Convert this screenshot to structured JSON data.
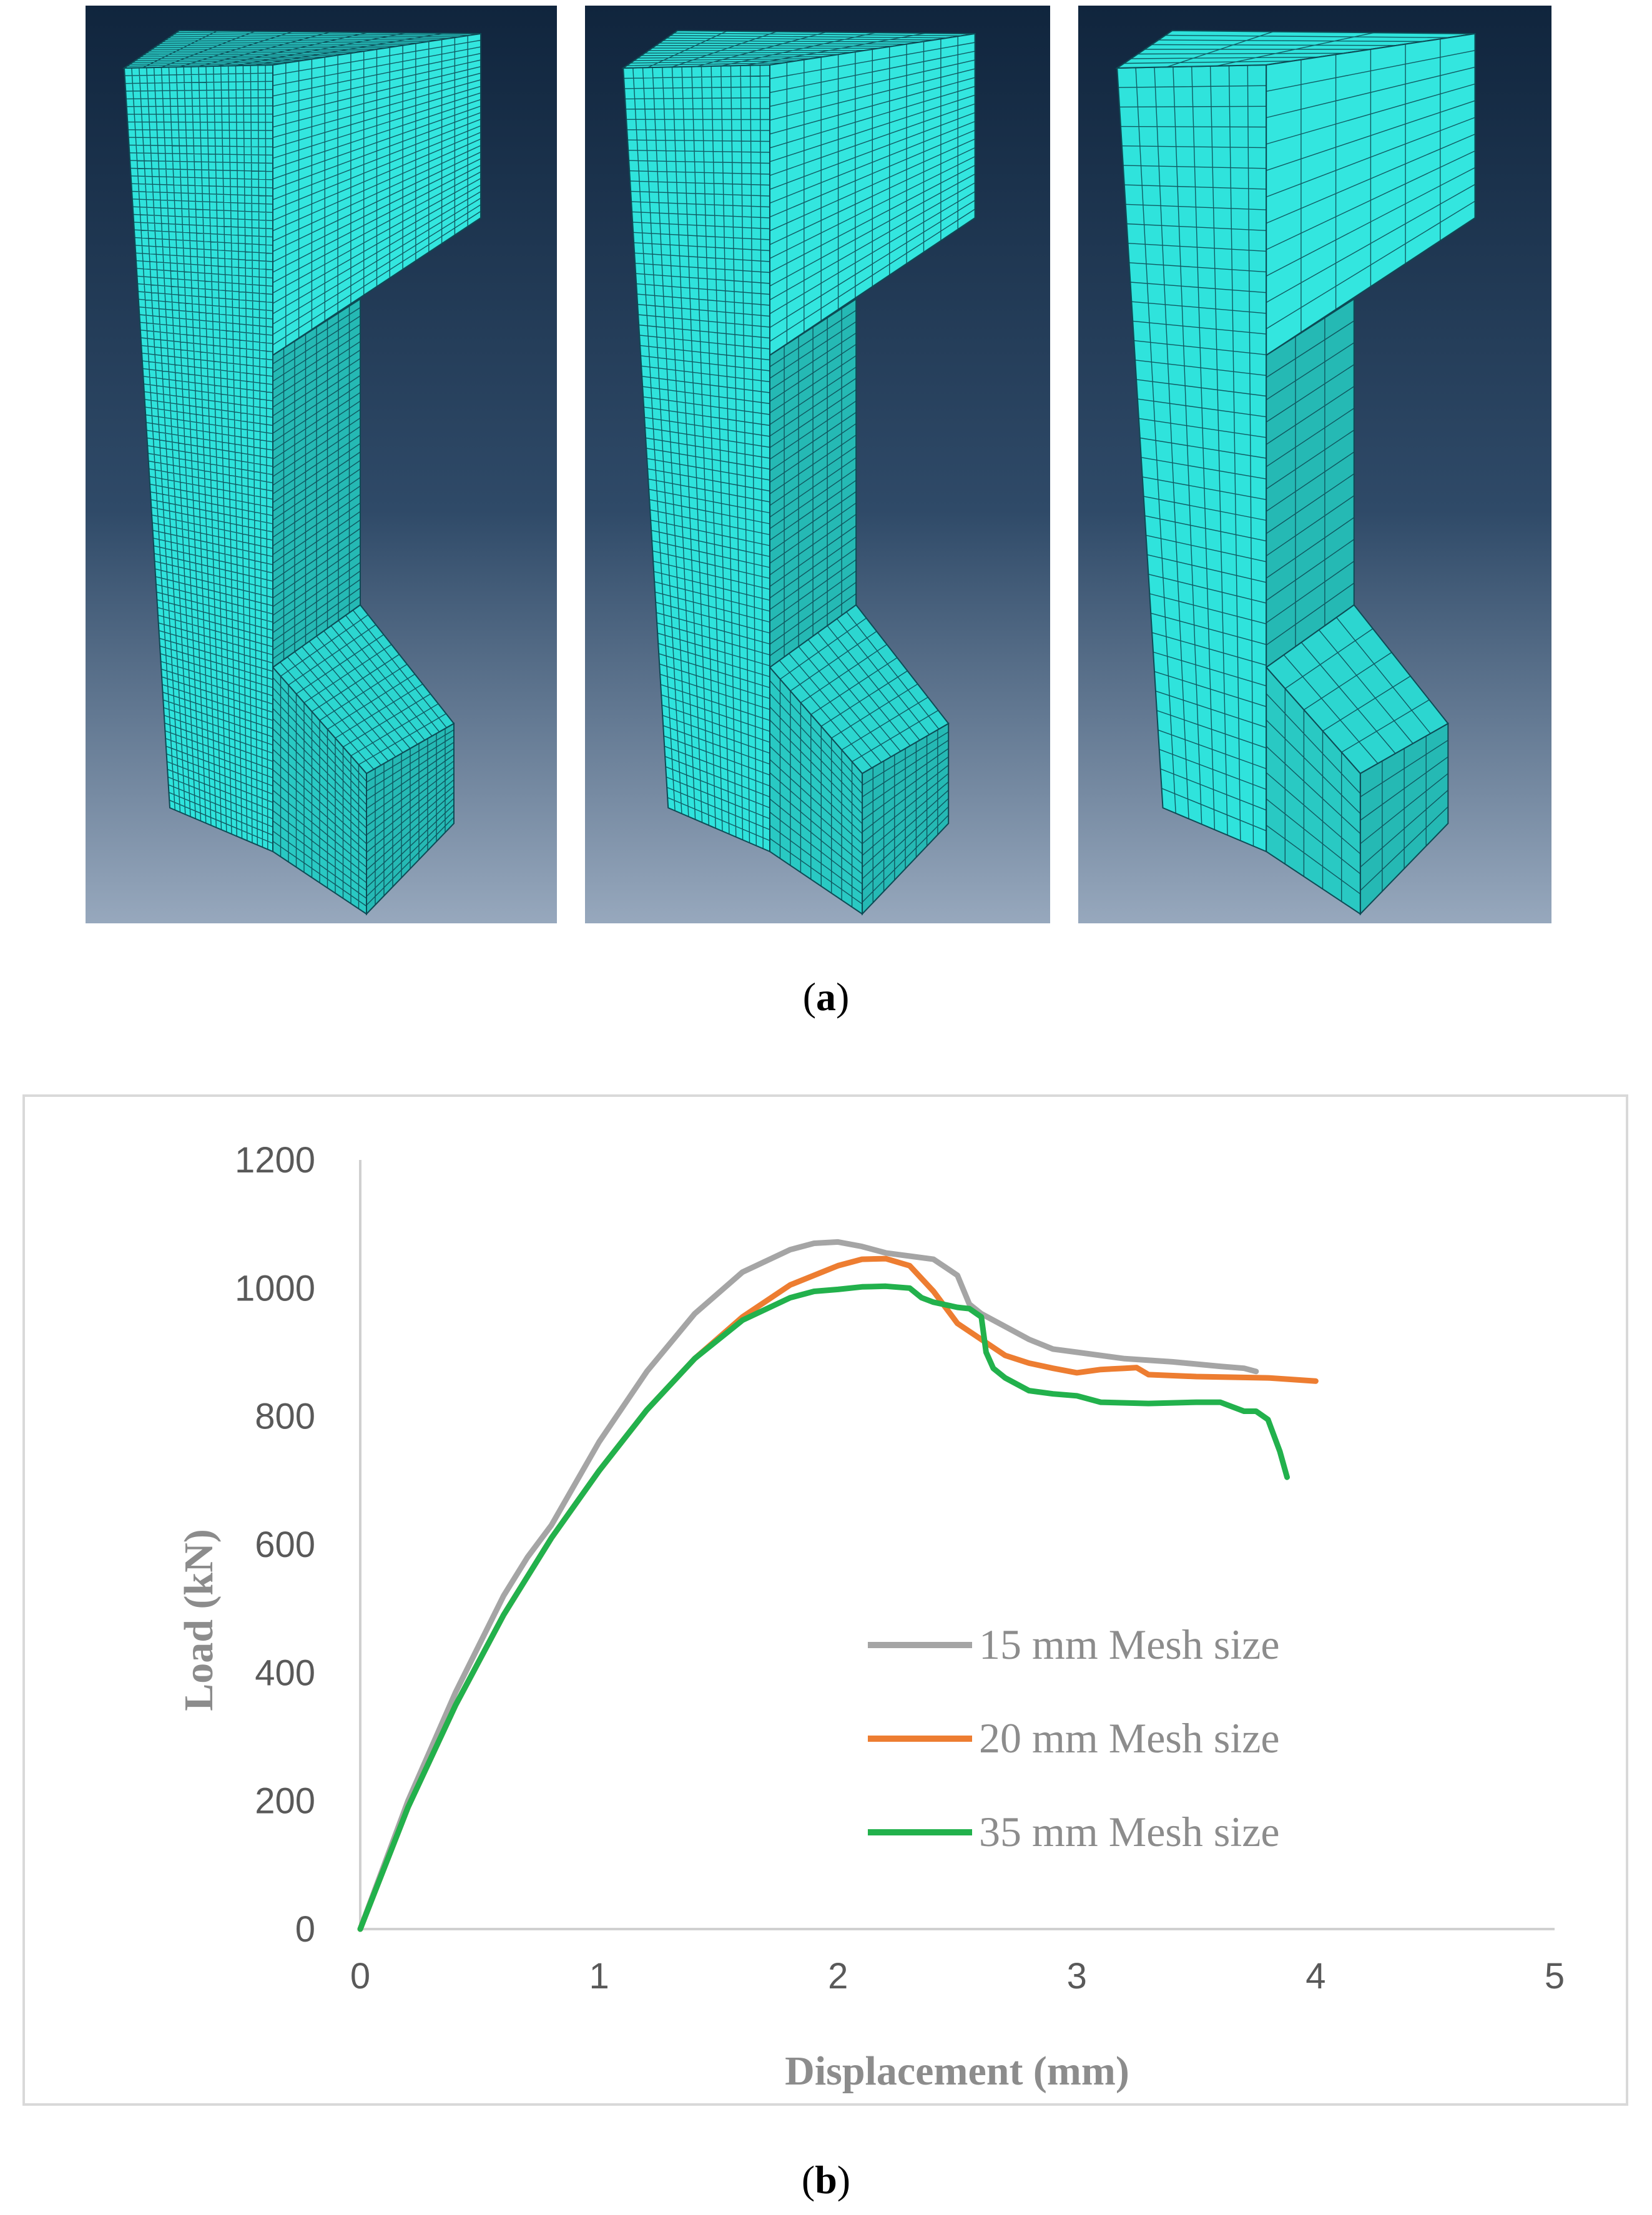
{
  "figure": {
    "caption_a": {
      "open": "(",
      "letter": "a",
      "close": ")"
    },
    "caption_b": {
      "open": "(",
      "letter": "b",
      "close": ")"
    },
    "mesh_panels": [
      {
        "name": "fine-mesh-model"
      },
      {
        "name": "medium-mesh-model"
      },
      {
        "name": "coarse-mesh-model"
      }
    ]
  },
  "colors": {
    "mesh_face": "#2fe3dc",
    "mesh_side": "#25b9b4",
    "mesh_line": "#0d4b55",
    "bg_top": "#10253d",
    "bg_bottom": "#97a8bd"
  },
  "chart_data": {
    "type": "line",
    "title": "",
    "xlabel": "Displacement (mm)",
    "ylabel": "Load (kN)",
    "xlim": [
      0,
      5
    ],
    "ylim": [
      0,
      1200
    ],
    "xticks": [
      0,
      1,
      2,
      3,
      4,
      5
    ],
    "yticks": [
      0,
      200,
      400,
      600,
      800,
      1000,
      1200
    ],
    "legend_position": "right-middle",
    "series": [
      {
        "name": "15 mm Mesh size",
        "color": "#a5a5a5",
        "x": [
          0,
          0.2,
          0.4,
          0.6,
          0.7,
          0.8,
          1.0,
          1.2,
          1.4,
          1.6,
          1.8,
          1.9,
          2.0,
          2.1,
          2.2,
          2.3,
          2.4,
          2.5,
          2.55,
          2.6,
          2.7,
          2.8,
          2.9,
          3.0,
          3.2,
          3.4,
          3.6,
          3.7,
          3.75
        ],
        "y": [
          0,
          200,
          370,
          520,
          580,
          630,
          760,
          870,
          960,
          1025,
          1060,
          1070,
          1072,
          1065,
          1055,
          1050,
          1045,
          1020,
          975,
          960,
          940,
          920,
          905,
          900,
          890,
          885,
          878,
          875,
          870
        ]
      },
      {
        "name": "20 mm Mesh size",
        "color": "#ed7d31",
        "x": [
          0,
          0.2,
          0.4,
          0.6,
          0.8,
          1.0,
          1.2,
          1.4,
          1.6,
          1.8,
          2.0,
          2.1,
          2.2,
          2.3,
          2.4,
          2.5,
          2.6,
          2.7,
          2.8,
          2.9,
          3.0,
          3.1,
          3.2,
          3.25,
          3.3,
          3.5,
          3.8,
          4.0
        ],
        "y": [
          0,
          190,
          350,
          490,
          610,
          715,
          810,
          890,
          955,
          1005,
          1035,
          1045,
          1046,
          1035,
          995,
          945,
          920,
          895,
          883,
          875,
          868,
          873,
          875,
          876,
          865,
          862,
          860,
          855
        ]
      },
      {
        "name": "35 mm Mesh size",
        "color": "#22b14c",
        "x": [
          0,
          0.2,
          0.4,
          0.6,
          0.8,
          1.0,
          1.2,
          1.4,
          1.6,
          1.8,
          1.9,
          2.0,
          2.1,
          2.2,
          2.3,
          2.35,
          2.4,
          2.5,
          2.55,
          2.6,
          2.62,
          2.65,
          2.7,
          2.8,
          2.9,
          3.0,
          3.1,
          3.3,
          3.5,
          3.6,
          3.65,
          3.7,
          3.75,
          3.8,
          3.85,
          3.88
        ],
        "y": [
          0,
          190,
          350,
          490,
          610,
          715,
          810,
          890,
          950,
          985,
          995,
          998,
          1002,
          1003,
          1000,
          985,
          978,
          970,
          968,
          955,
          900,
          875,
          860,
          840,
          835,
          832,
          822,
          820,
          822,
          822,
          815,
          808,
          808,
          795,
          745,
          705
        ]
      }
    ]
  }
}
